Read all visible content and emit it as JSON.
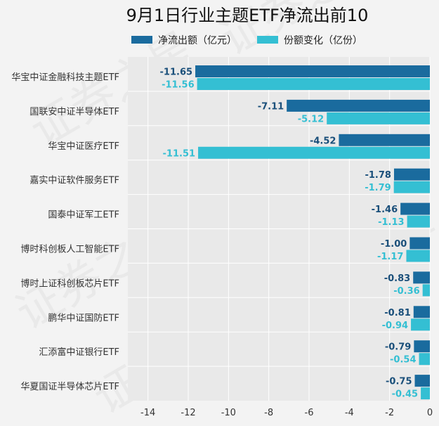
{
  "chart_data": {
    "type": "bar",
    "orientation": "horizontal",
    "title": "9月1日行业主题ETF净流出前10",
    "xlabel": "",
    "ylabel": "",
    "xlim": [
      -15,
      0
    ],
    "x_ticks": [
      -14,
      -12,
      -10,
      -8,
      -6,
      -4,
      -2,
      0
    ],
    "grid": "on",
    "legend_position": "top",
    "categories": [
      "华宝中证金融科技主题ETF",
      "国联安中证半导体ETF",
      "华宝中证医疗ETF",
      "嘉实中证软件服务ETF",
      "国泰中证军工ETF",
      "博时科创板人工智能ETF",
      "博时上证科创板芯片ETF",
      "鹏华中证国防ETF",
      "汇添富中证银行ETF",
      "华夏国证半导体芯片ETF"
    ],
    "series": [
      {
        "name": "净流出额（亿元）",
        "color": "#1a6b9e",
        "values": [
          -11.65,
          -7.11,
          -4.52,
          -1.78,
          -1.46,
          -1.0,
          -0.83,
          -0.81,
          -0.79,
          -0.75
        ],
        "labels": [
          "-11.65",
          "-7.11",
          "-4.52",
          "-1.78",
          "-1.46",
          "-1.00",
          "-0.83",
          "-0.81",
          "-0.79",
          "-0.75"
        ]
      },
      {
        "name": "份额变化（亿份）",
        "color": "#34bfd3",
        "values": [
          -11.56,
          -5.12,
          -11.51,
          -1.79,
          -1.13,
          -1.17,
          -0.36,
          -0.94,
          -0.54,
          -0.45
        ],
        "labels": [
          "-11.56",
          "-5.12",
          "-11.51",
          "-1.79",
          "-1.13",
          "-1.17",
          "-0.36",
          "-0.94",
          "-0.54",
          "-0.45"
        ]
      }
    ],
    "watermark": "证券之星"
  }
}
